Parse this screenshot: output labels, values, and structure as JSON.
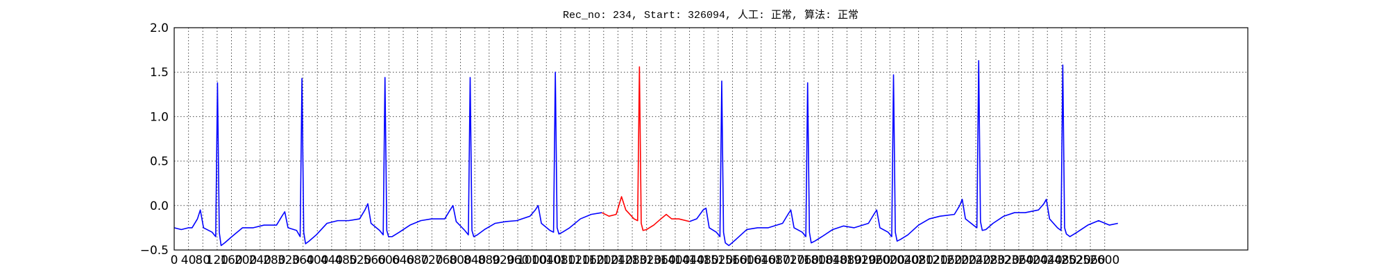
{
  "chart_data": {
    "type": "line",
    "title": "Rec_no: 234, Start: 326094, 人工: 正常, 算法: 正常",
    "x": [
      0,
      20,
      40,
      50,
      65,
      73,
      82,
      106,
      116,
      121,
      126,
      131,
      141,
      161,
      191,
      221,
      251,
      286,
      301,
      309,
      318,
      342,
      352,
      357,
      362,
      367,
      377,
      397,
      427,
      457,
      487,
      518,
      533,
      541,
      550,
      574,
      584,
      589,
      594,
      599,
      609,
      629,
      659,
      689,
      719,
      756,
      771,
      779,
      788,
      812,
      822,
      827,
      832,
      837,
      847,
      867,
      897,
      927,
      957,
      994,
      1009,
      1017,
      1026,
      1050,
      1060,
      1065,
      1070,
      1075,
      1085,
      1105,
      1135,
      1165,
      1195,
      1215,
      1235,
      1250,
      1262,
      1285,
      1295,
      1300,
      1305,
      1310,
      1320,
      1340,
      1360,
      1375,
      1390,
      1410,
      1440,
      1460,
      1478,
      1486,
      1495,
      1515,
      1525,
      1530,
      1535,
      1540,
      1550,
      1570,
      1600,
      1630,
      1660,
      1700,
      1715,
      1723,
      1732,
      1755,
      1765,
      1770,
      1775,
      1780,
      1790,
      1810,
      1840,
      1870,
      1900,
      1940,
      1955,
      1963,
      1972,
      1995,
      2005,
      2010,
      2015,
      2020,
      2030,
      2050,
      2080,
      2110,
      2140,
      2180,
      2195,
      2202,
      2211,
      2233,
      2243,
      2248,
      2253,
      2258,
      2268,
      2288,
      2318,
      2348,
      2378,
      2415,
      2430,
      2437,
      2446,
      2468,
      2478,
      2483,
      2488,
      2493,
      2503,
      2523,
      2553,
      2583,
      2613,
      2637
    ],
    "series": [
      {
        "color": "#0000ff",
        "values": [
          -0.25,
          -0.27,
          -0.25,
          -0.25,
          -0.15,
          -0.05,
          -0.25,
          -0.3,
          -0.35,
          1.38,
          -0.3,
          -0.45,
          -0.42,
          -0.35,
          -0.25,
          -0.25,
          -0.22,
          -0.22,
          -0.12,
          -0.07,
          -0.25,
          -0.28,
          -0.35,
          1.43,
          -0.3,
          -0.43,
          -0.4,
          -0.33,
          -0.2,
          -0.17,
          -0.17,
          -0.15,
          -0.05,
          0.02,
          -0.2,
          -0.28,
          -0.33,
          1.44,
          -0.28,
          -0.35,
          -0.35,
          -0.3,
          -0.22,
          -0.17,
          -0.15,
          -0.15,
          -0.05,
          0,
          -0.18,
          -0.28,
          -0.33,
          1.44,
          -0.28,
          -0.35,
          -0.33,
          -0.27,
          -0.2,
          -0.18,
          -0.17,
          -0.12,
          -0.05,
          0,
          -0.2,
          -0.28,
          -0.3,
          1.5,
          -0.25,
          -0.32,
          -0.3,
          -0.25,
          -0.15,
          -0.1,
          -0.08,
          null,
          null,
          null,
          null,
          null,
          null,
          null,
          null,
          null,
          null,
          null,
          null,
          null,
          null,
          null,
          -0.18,
          -0.15,
          -0.05,
          -0.03,
          -0.25,
          -0.3,
          -0.35,
          1.4,
          -0.3,
          -0.42,
          -0.45,
          -0.38,
          -0.27,
          -0.25,
          -0.25,
          -0.2,
          -0.1,
          -0.05,
          -0.25,
          -0.3,
          -0.35,
          1.38,
          -0.3,
          -0.42,
          -0.4,
          -0.35,
          -0.27,
          -0.23,
          -0.25,
          -0.2,
          -0.1,
          -0.05,
          -0.25,
          -0.3,
          -0.35,
          1.47,
          -0.3,
          -0.4,
          -0.38,
          -0.33,
          -0.22,
          -0.15,
          -0.12,
          -0.1,
          0,
          0.07,
          -0.15,
          -0.22,
          -0.25,
          1.63,
          -0.18,
          -0.28,
          -0.27,
          -0.2,
          -0.12,
          -0.08,
          -0.08,
          -0.05,
          0.02,
          0.07,
          -0.15,
          -0.25,
          -0.28,
          1.58,
          -0.25,
          -0.32,
          -0.35,
          -0.3,
          -0.22,
          -0.17,
          -0.22,
          -0.2
        ]
      },
      {
        "color": "#ff0000",
        "values": [
          null,
          null,
          null,
          null,
          null,
          null,
          null,
          null,
          null,
          null,
          null,
          null,
          null,
          null,
          null,
          null,
          null,
          null,
          null,
          null,
          null,
          null,
          null,
          null,
          null,
          null,
          null,
          null,
          null,
          null,
          null,
          null,
          null,
          null,
          null,
          null,
          null,
          null,
          null,
          null,
          null,
          null,
          null,
          null,
          null,
          null,
          null,
          null,
          null,
          null,
          null,
          null,
          null,
          null,
          null,
          null,
          null,
          null,
          null,
          null,
          null,
          null,
          null,
          null,
          null,
          null,
          null,
          null,
          null,
          null,
          null,
          null,
          -0.08,
          -0.12,
          -0.1,
          0.1,
          -0.05,
          -0.15,
          -0.17,
          1.56,
          -0.2,
          -0.28,
          -0.27,
          -0.22,
          -0.15,
          -0.1,
          -0.15,
          -0.15,
          -0.18,
          null,
          null,
          null,
          null,
          null,
          null,
          null,
          null,
          null,
          null,
          null,
          null,
          null,
          null,
          null,
          null,
          null,
          null,
          null,
          null,
          null,
          null,
          null,
          null,
          null,
          null,
          null,
          null,
          null,
          null,
          null,
          null,
          null,
          null,
          null,
          null,
          null,
          null,
          null,
          null,
          null,
          null,
          null,
          null,
          null,
          null,
          null,
          null,
          null,
          null,
          null,
          null,
          null,
          null,
          null,
          null,
          null,
          null,
          null,
          null,
          null,
          null,
          null,
          null,
          null,
          null,
          null,
          null,
          null,
          null,
          null
        ]
      }
    ],
    "xlim": [
      0,
      3000
    ],
    "xticks": [
      0,
      40,
      80,
      120,
      160,
      200,
      240,
      280,
      320,
      360,
      400,
      440,
      480,
      520,
      560,
      600,
      640,
      680,
      720,
      760,
      800,
      840,
      880,
      920,
      960,
      1000,
      1040,
      1080,
      1120,
      1160,
      1200,
      1240,
      1280,
      1320,
      1360,
      1400,
      1440,
      1480,
      1520,
      1560,
      1600,
      1640,
      1680,
      1720,
      1760,
      1800,
      1840,
      1880,
      1920,
      1960,
      2000,
      2040,
      2080,
      2120,
      2160,
      2200,
      2240,
      2280,
      2320,
      2360,
      2400,
      2440,
      2480,
      2520,
      2560,
      2600
    ],
    "ylim": [
      -0.5,
      2.0
    ],
    "yticks": [
      {
        "value": -0.5,
        "label": "−0.5"
      },
      {
        "value": 0,
        "label": "0.0"
      },
      0.5,
      {
        "value": 1,
        "label": "1.0"
      },
      1.5,
      {
        "value": 2,
        "label": "2.0"
      }
    ],
    "grid": true
  }
}
